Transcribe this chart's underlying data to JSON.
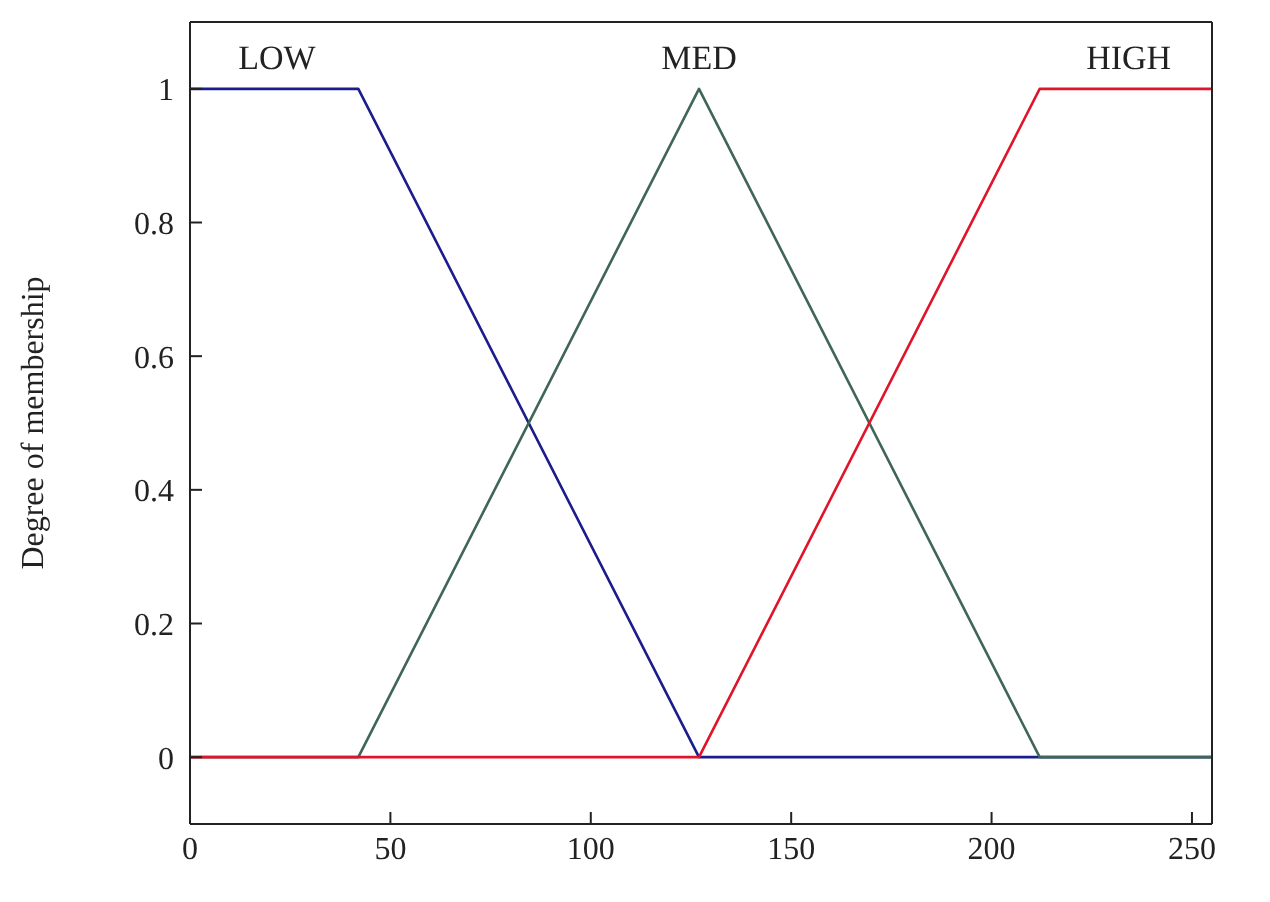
{
  "chart_data": {
    "type": "line",
    "ylabel": "Degree of membership",
    "xlim": [
      0,
      255
    ],
    "ylim": [
      -0.1,
      1.1
    ],
    "xticks": [
      0,
      50,
      100,
      150,
      200,
      250
    ],
    "yticks": [
      0,
      0.2,
      0.4,
      0.6,
      0.8,
      1
    ],
    "marker": "none",
    "line_style": "solid",
    "series": [
      {
        "name": "LOW",
        "color": "#1c1c8c",
        "x": [
          0,
          42,
          127,
          255
        ],
        "values": [
          1,
          1,
          0,
          0
        ]
      },
      {
        "name": "MED",
        "color": "#3f6656",
        "x": [
          0,
          42,
          127,
          212,
          255
        ],
        "values": [
          0,
          0,
          1,
          0,
          0
        ]
      },
      {
        "name": "HIGH",
        "color": "#e0142a",
        "x": [
          0,
          127,
          212,
          255
        ],
        "values": [
          0,
          0,
          1,
          1
        ]
      }
    ]
  }
}
